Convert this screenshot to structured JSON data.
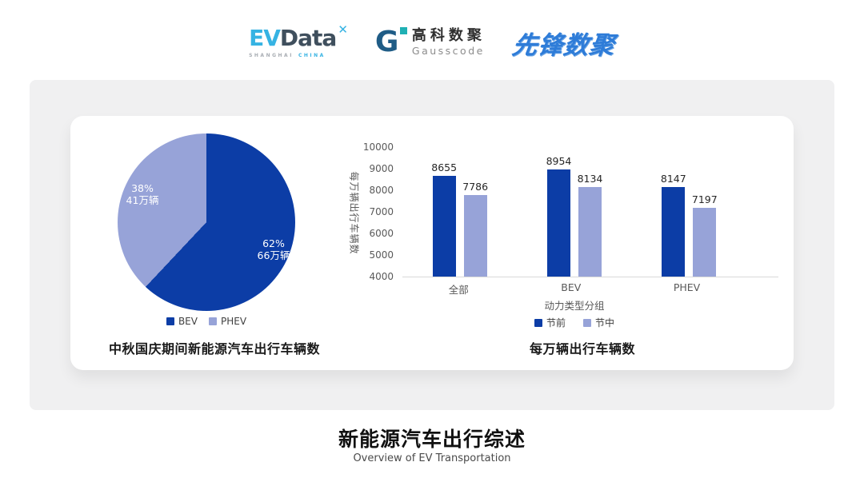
{
  "page": {
    "footer_title": "新能源汽车出行综述",
    "footer_subtitle": "Overview of EV Transportation"
  },
  "header": {
    "evdata": {
      "ev": "EV",
      "data": "Data",
      "mark": "✕",
      "sub1": "SHANGHAI",
      "sub2": "CHINA"
    },
    "gausscode": {
      "icon_letter": "G",
      "name_cn": "高科数聚",
      "name_en": "Gausscode"
    },
    "pioneer": {
      "text": "先锋数聚"
    }
  },
  "colors": {
    "series_dark": "#0c3da6",
    "series_light": "#97a3d8",
    "panel_gray": "#f0f0f1",
    "axis_line": "#d9d9d9",
    "axis_text": "#595959",
    "evdata_blue": "#36b3e3",
    "evdata_slate": "#3f4f5d",
    "gausscode_blue": "#1f5c86",
    "gausscode_teal": "#1fb0b4",
    "pioneer_blue": "#2e7cd8"
  },
  "chart_data": [
    {
      "type": "pie",
      "title": "中秋国庆期间新能源汽车出行车辆数",
      "start_angle_deg": 0,
      "legend_position": "bottom",
      "slices": [
        {
          "label": "BEV",
          "percent": 62,
          "percent_label": "62%",
          "value_label": "66万辆",
          "color": "#0c3da6"
        },
        {
          "label": "PHEV",
          "percent": 38,
          "percent_label": "38%",
          "value_label": "41万辆",
          "color": "#97a3d8"
        }
      ]
    },
    {
      "type": "bar",
      "title": "每万辆出行车辆数",
      "xlabel": "动力类型分组",
      "ylabel": "每万辆出行车辆数",
      "categories": [
        "全部",
        "BEV",
        "PHEV"
      ],
      "series": [
        {
          "name": "节前",
          "color": "#0c3da6",
          "values": [
            8655,
            8954,
            8147
          ]
        },
        {
          "name": "节中",
          "color": "#97a3d8",
          "values": [
            7786,
            8134,
            7197
          ]
        }
      ],
      "ylim": [
        4000,
        10000
      ],
      "yticks": [
        4000,
        5000,
        6000,
        7000,
        8000,
        9000,
        10000
      ],
      "grid": false,
      "legend_position": "bottom"
    }
  ]
}
